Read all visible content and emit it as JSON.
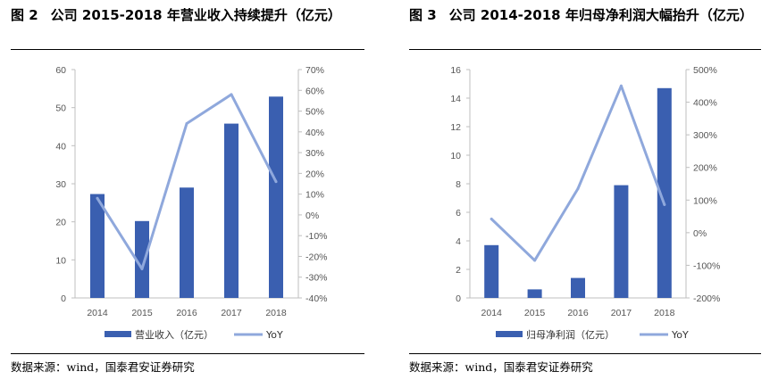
{
  "source_text": "数据来源：wind，国泰君安证券研究",
  "colors": {
    "bar": "#3a5fb0",
    "line": "#8fa8dc",
    "axis": "#bfbfbf"
  },
  "chart_data": [
    {
      "type": "bar",
      "figure_label": "图 2",
      "title": "公司 2015-2018 年营业收入持续提升（亿元）",
      "categories": [
        "2014",
        "2015",
        "2016",
        "2017",
        "2018"
      ],
      "series": [
        {
          "name": "营业收入（亿元）",
          "type": "bar",
          "axis": "left",
          "values": [
            27.3,
            20.2,
            29.0,
            45.8,
            52.9
          ]
        },
        {
          "name": "YoY",
          "type": "line",
          "axis": "right",
          "values": [
            0.08,
            -0.26,
            0.44,
            0.58,
            0.16
          ]
        }
      ],
      "y_left": {
        "min": 0,
        "max": 60,
        "step": 10,
        "ticks": [
          "0",
          "10",
          "20",
          "30",
          "40",
          "50",
          "60"
        ]
      },
      "y_right": {
        "min": -0.4,
        "max": 0.7,
        "step": 0.1,
        "ticks": [
          "-40%",
          "-30%",
          "-20%",
          "-10%",
          "0%",
          "10%",
          "20%",
          "30%",
          "40%",
          "50%",
          "60%",
          "70%"
        ]
      },
      "grid": false,
      "legend_position": "bottom"
    },
    {
      "type": "bar",
      "figure_label": "图 3",
      "title": "公司 2014-2018 年归母净利润大幅抬升（亿元）",
      "categories": [
        "2014",
        "2015",
        "2016",
        "2017",
        "2018"
      ],
      "series": [
        {
          "name": "归母净利润（亿元）",
          "type": "bar",
          "axis": "left",
          "values": [
            3.7,
            0.6,
            1.4,
            7.9,
            14.7
          ]
        },
        {
          "name": "YoY",
          "type": "line",
          "axis": "right",
          "values": [
            0.42,
            -0.85,
            1.35,
            4.5,
            0.86
          ]
        }
      ],
      "y_left": {
        "min": 0,
        "max": 16,
        "step": 2,
        "ticks": [
          "0",
          "2",
          "4",
          "6",
          "8",
          "10",
          "12",
          "14",
          "16"
        ]
      },
      "y_right": {
        "min": -2.0,
        "max": 5.0,
        "step": 1.0,
        "ticks": [
          "-200%",
          "-100%",
          "0%",
          "100%",
          "200%",
          "300%",
          "400%",
          "500%"
        ]
      },
      "grid": false,
      "legend_position": "bottom"
    }
  ]
}
